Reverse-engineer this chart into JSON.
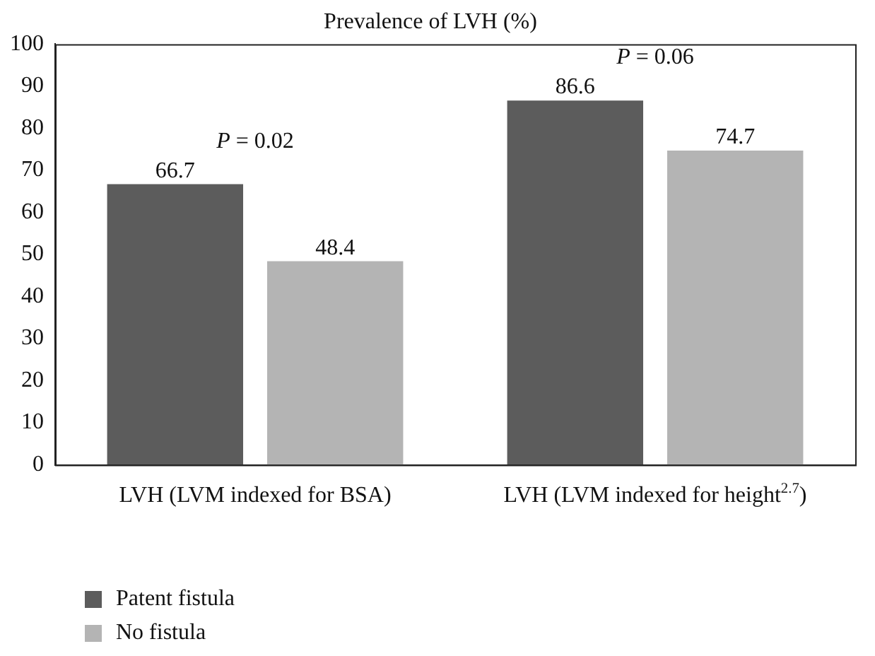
{
  "chart_data": {
    "type": "bar",
    "title": "Prevalence of LVH (%)",
    "categories": [
      "LVH (LVM indexed for BSA)",
      "LVH (LVM indexed for height$^{2.7}$)"
    ],
    "series": [
      {
        "name": "Patent fistula",
        "color": "#5c5c5c",
        "values": [
          66.7,
          86.6
        ]
      },
      {
        "name": "No fistula",
        "color": "#b4b4b4",
        "values": [
          48.4,
          74.7
        ]
      }
    ],
    "ylim": [
      0,
      100
    ],
    "yticks": [
      0,
      10,
      20,
      30,
      40,
      50,
      60,
      70,
      80,
      90,
      100
    ],
    "grid": false,
    "legend": "bottom left",
    "data_labels": true,
    "annotations": [
      "P = 0.02",
      "P = 0.06"
    ]
  }
}
